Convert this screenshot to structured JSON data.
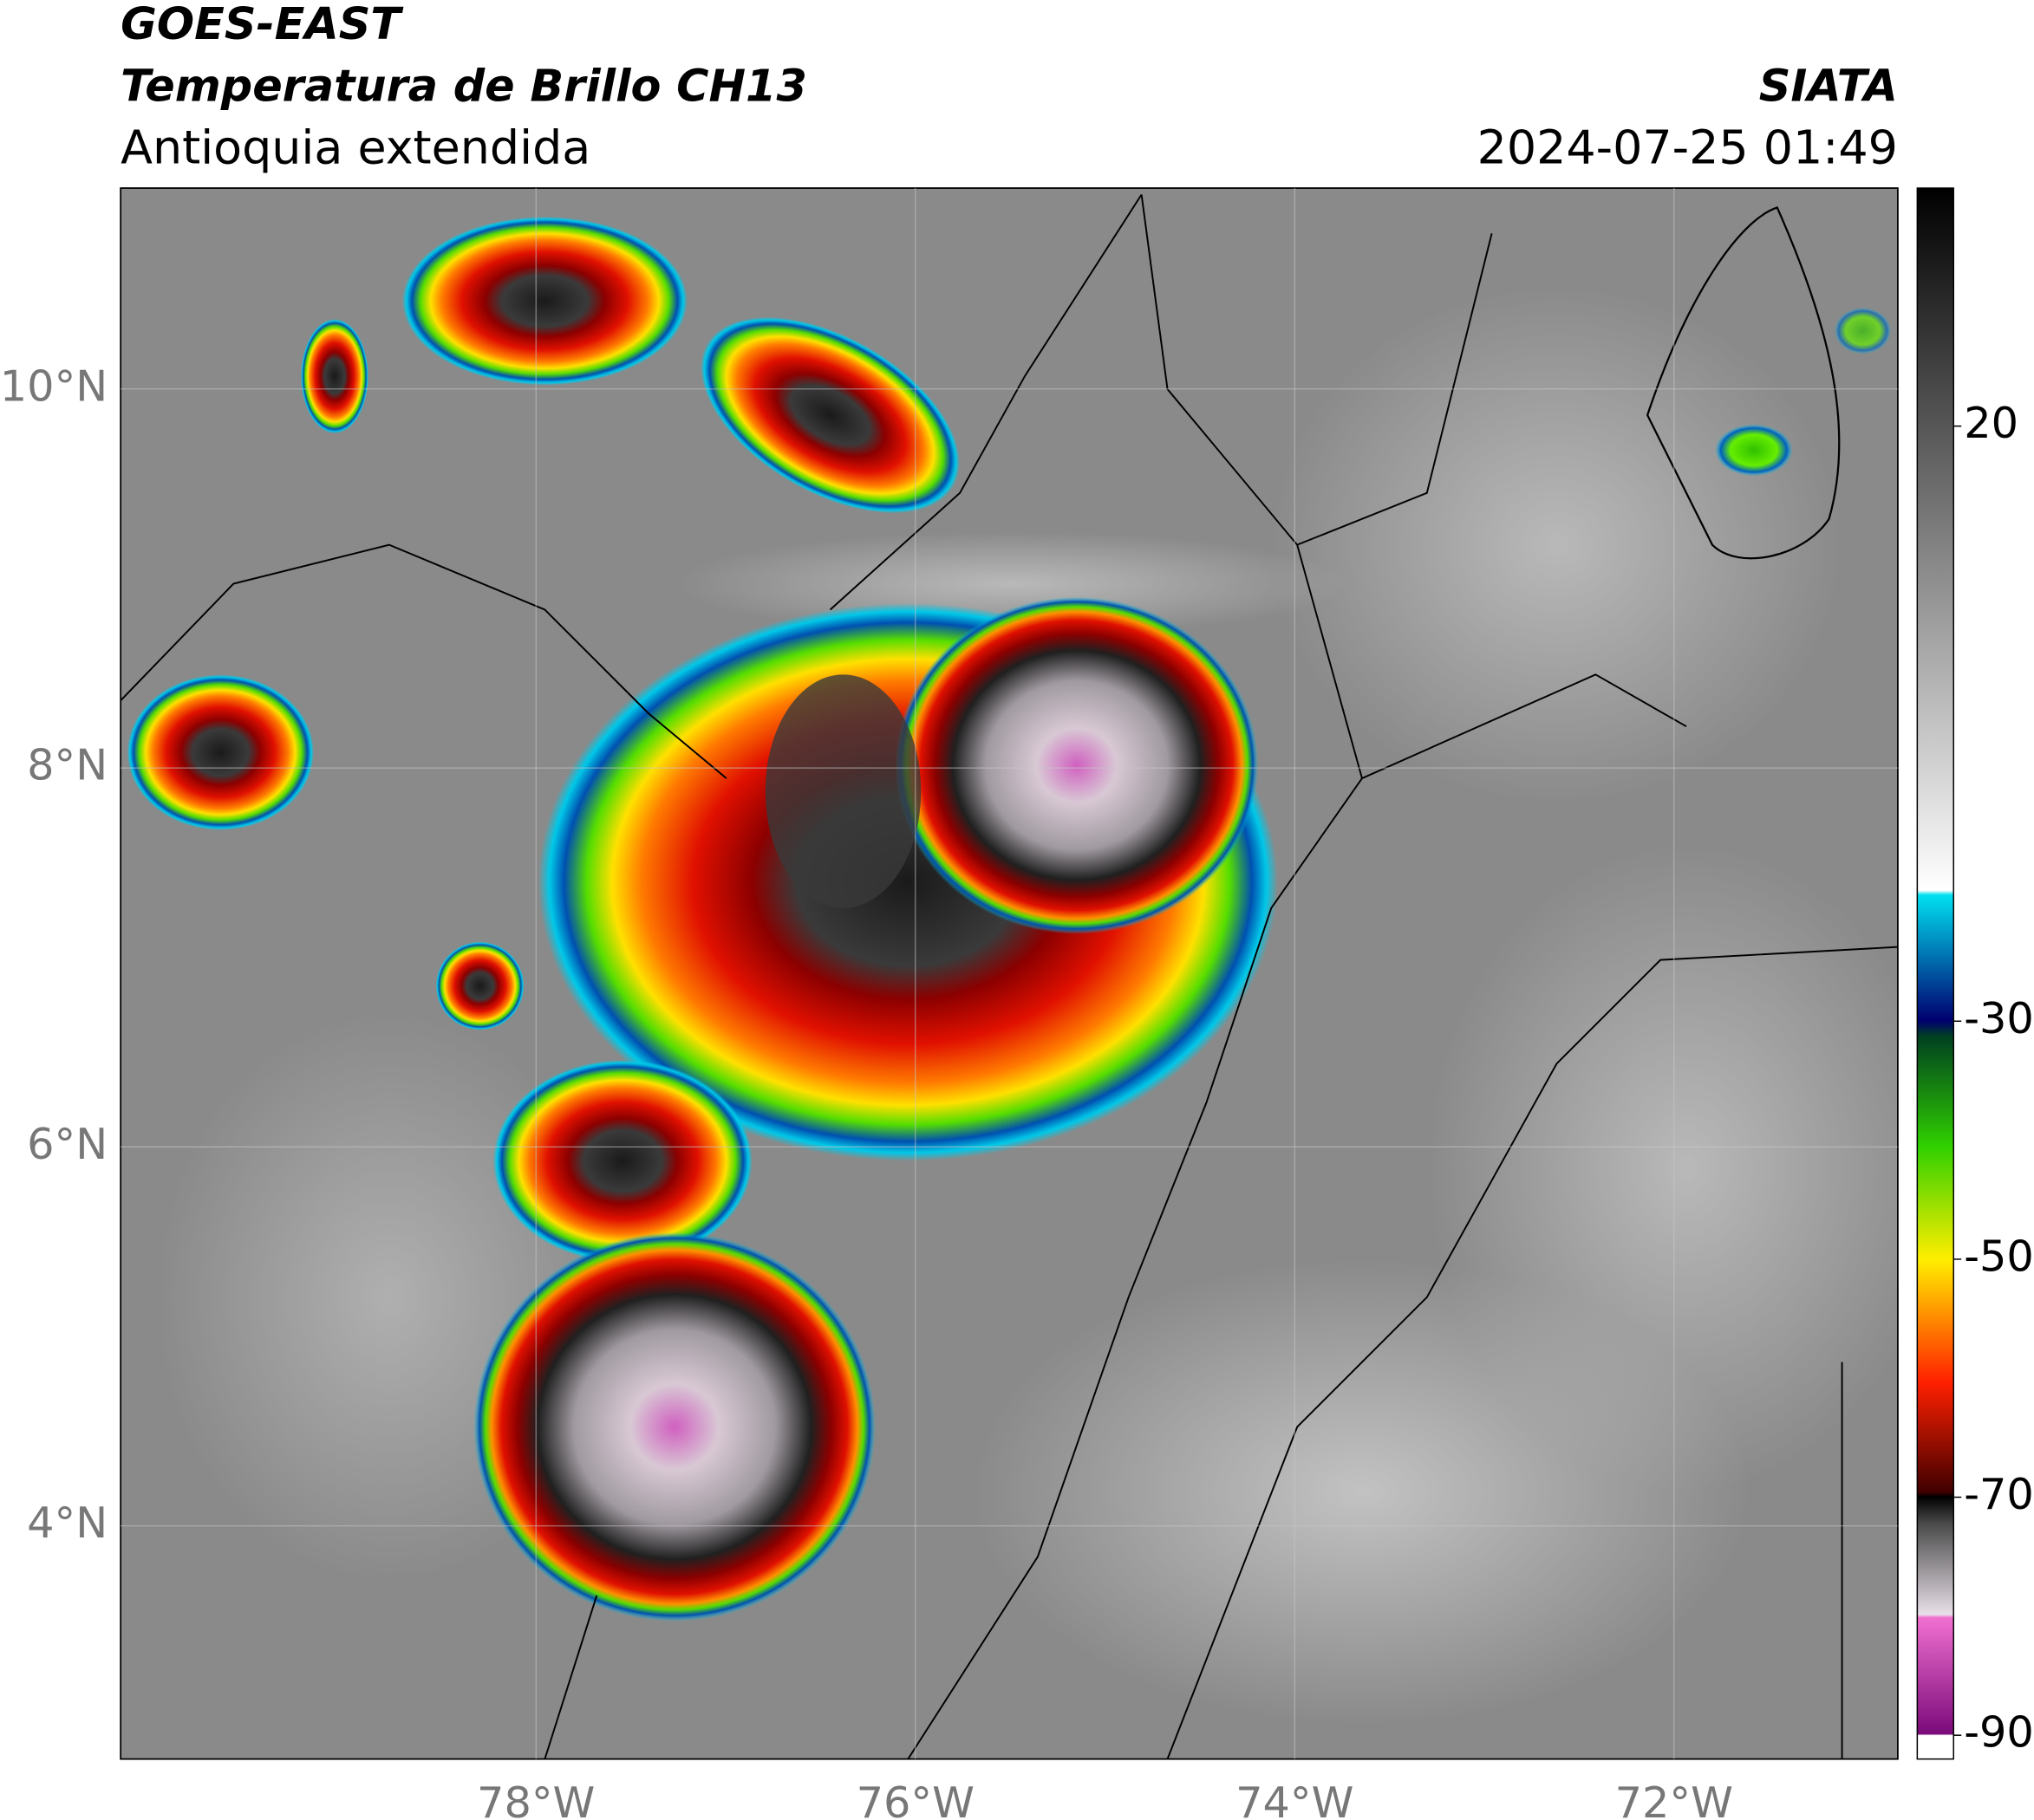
{
  "header": {
    "title": "GOES-EAST",
    "subtitle": "Temperatura de Brillo CH13",
    "region": "Antioquia extendida",
    "source": "SIATA",
    "datetime": "2024-07-25 01:49"
  },
  "map": {
    "xlim": [
      -80.19,
      -70.82
    ],
    "ylim": [
      2.77,
      11.06
    ],
    "xticks": [
      {
        "value": -78,
        "label": "78°W"
      },
      {
        "value": -76,
        "label": "76°W"
      },
      {
        "value": -74,
        "label": "74°W"
      },
      {
        "value": -72,
        "label": "72°W"
      }
    ],
    "yticks": [
      {
        "value": 4,
        "label": "4°N"
      },
      {
        "value": 6,
        "label": "6°N"
      },
      {
        "value": 8,
        "label": "8°N"
      },
      {
        "value": 10,
        "label": "10°N"
      }
    ]
  },
  "colorbar": {
    "lim": [
      -92,
      40
    ],
    "ticks": [
      20,
      -30,
      -50,
      -70,
      -90
    ]
  }
}
